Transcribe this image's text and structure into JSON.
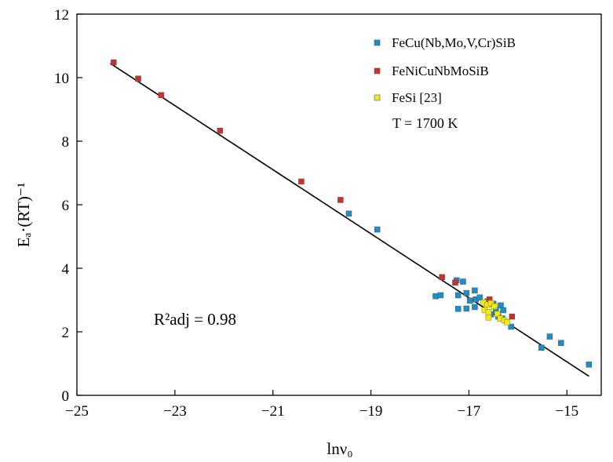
{
  "chart_data": {
    "type": "scatter",
    "xlabel": "lnν₀",
    "ylabel": "Eₐ·(RT)⁻¹",
    "xlim": [
      -25,
      -14.3
    ],
    "ylim": [
      0,
      12
    ],
    "x_ticks": [
      -25,
      -23,
      -21,
      -19,
      -17,
      -15
    ],
    "y_ticks": [
      0,
      2,
      4,
      6,
      8,
      10,
      12
    ],
    "x_tick_labels": [
      "−25",
      "−23",
      "−21",
      "−19",
      "−17",
      "−15"
    ],
    "y_tick_labels": [
      "0",
      "2",
      "4",
      "6",
      "8",
      "10",
      "12"
    ],
    "grid": false,
    "legend_position": "top-right",
    "annotations": {
      "temperature": "T = 1700 K",
      "r2": "R²adj = 0.98"
    },
    "series": [
      {
        "name": "FeCu(Nb,Mo,V,Cr)SiB",
        "color": "#1a8fc8",
        "points": [
          [
            -19.45,
            5.72
          ],
          [
            -18.87,
            5.22
          ],
          [
            -17.68,
            3.12
          ],
          [
            -17.58,
            3.15
          ],
          [
            -17.25,
            3.62
          ],
          [
            -17.12,
            3.58
          ],
          [
            -17.22,
            3.15
          ],
          [
            -17.05,
            3.22
          ],
          [
            -16.88,
            3.3
          ],
          [
            -16.98,
            2.98
          ],
          [
            -16.86,
            3.02
          ],
          [
            -17.22,
            2.72
          ],
          [
            -17.05,
            2.73
          ],
          [
            -16.88,
            2.78
          ],
          [
            -16.78,
            3.08
          ],
          [
            -16.62,
            2.96
          ],
          [
            -16.5,
            2.88
          ],
          [
            -16.35,
            2.83
          ],
          [
            -16.45,
            2.68
          ],
          [
            -16.3,
            2.68
          ],
          [
            -16.4,
            2.48
          ],
          [
            -16.32,
            2.42
          ],
          [
            -16.14,
            2.16
          ],
          [
            -16.55,
            2.55
          ],
          [
            -15.52,
            1.5
          ],
          [
            -15.35,
            1.85
          ],
          [
            -15.12,
            1.65
          ],
          [
            -14.55,
            0.97
          ]
        ]
      },
      {
        "name": "FeNiCuNbMoSiB",
        "color": "#c8322a",
        "points": [
          [
            -24.25,
            10.48
          ],
          [
            -23.75,
            9.97
          ],
          [
            -23.28,
            9.45
          ],
          [
            -22.08,
            8.33
          ],
          [
            -20.42,
            6.73
          ],
          [
            -19.62,
            6.15
          ],
          [
            -17.55,
            3.72
          ],
          [
            -17.28,
            3.55
          ],
          [
            -16.58,
            3.02
          ],
          [
            -16.12,
            2.48
          ]
        ]
      },
      {
        "name": "FeSi [23]",
        "color": "#f2e81a",
        "points": [
          [
            -16.7,
            2.92
          ],
          [
            -16.62,
            2.85
          ],
          [
            -16.55,
            2.9
          ],
          [
            -16.48,
            2.8
          ],
          [
            -16.68,
            2.68
          ],
          [
            -16.6,
            2.62
          ],
          [
            -16.42,
            2.56
          ],
          [
            -16.36,
            2.42
          ],
          [
            -16.28,
            2.36
          ],
          [
            -16.22,
            2.3
          ],
          [
            -16.6,
            2.45
          ]
        ]
      }
    ],
    "fit_line": {
      "x": [
        -24.32,
        -14.55
      ],
      "y": [
        10.45,
        0.6
      ]
    }
  }
}
